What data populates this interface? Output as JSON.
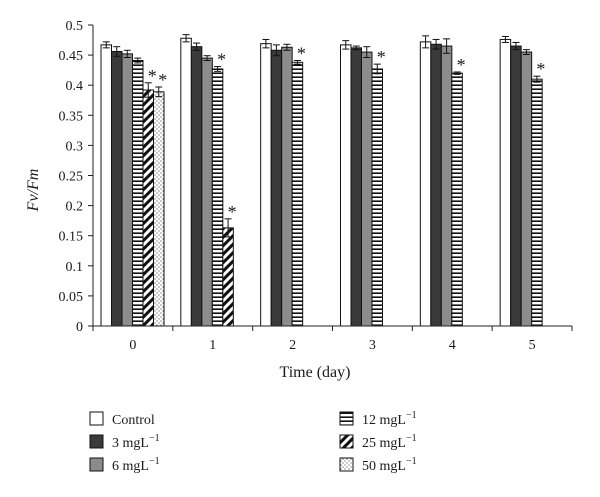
{
  "chart_data": {
    "type": "bar",
    "ylabel": "Fv/Fm",
    "xlabel": "Time (day)",
    "ylim": [
      0,
      0.5
    ],
    "yticks": [
      "0",
      "0.05",
      "0.1",
      "0.15",
      "0.2",
      "0.25",
      "0.3",
      "0.35",
      "0.4",
      "0.45",
      "0.5"
    ],
    "categories": [
      "0",
      "1",
      "2",
      "3",
      "4",
      "5"
    ],
    "series": [
      {
        "name": "Control",
        "pattern": "white",
        "values": [
          0.467,
          0.478,
          0.469,
          0.467,
          0.472,
          0.476
        ],
        "errors": [
          0.005,
          0.006,
          0.007,
          0.007,
          0.01,
          0.005
        ],
        "significant": [
          false,
          false,
          false,
          false,
          false,
          false
        ]
      },
      {
        "name": "3 mgL",
        "sup": "−1",
        "pattern": "dark",
        "values": [
          0.456,
          0.464,
          0.458,
          0.462,
          0.468,
          0.465
        ],
        "errors": [
          0.008,
          0.006,
          0.009,
          0.003,
          0.008,
          0.006
        ],
        "significant": [
          false,
          false,
          false,
          false,
          false,
          false
        ]
      },
      {
        "name": "6 mgL",
        "sup": "−1",
        "pattern": "gray",
        "values": [
          0.452,
          0.445,
          0.463,
          0.455,
          0.465,
          0.455
        ],
        "errors": [
          0.006,
          0.004,
          0.005,
          0.009,
          0.012,
          0.004
        ],
        "significant": [
          false,
          false,
          false,
          false,
          false,
          false
        ]
      },
      {
        "name": "12 mgL",
        "sup": "−1",
        "pattern": "hlines",
        "values": [
          0.441,
          0.427,
          0.438,
          0.427,
          0.42,
          0.41
        ],
        "errors": [
          0.004,
          0.004,
          0.003,
          0.008,
          0.002,
          0.005
        ],
        "significant": [
          false,
          true,
          true,
          true,
          true,
          true
        ]
      },
      {
        "name": "25 mgL",
        "sup": "−1",
        "pattern": "diag",
        "values": [
          0.392,
          0.163,
          null,
          null,
          null,
          null
        ],
        "errors": [
          0.012,
          0.015,
          null,
          null,
          null,
          null
        ],
        "significant": [
          true,
          true,
          false,
          false,
          false,
          false
        ]
      },
      {
        "name": "50 mgL",
        "sup": "−1",
        "pattern": "dots",
        "values": [
          0.389,
          null,
          null,
          null,
          null,
          null
        ],
        "errors": [
          0.008,
          null,
          null,
          null,
          null,
          null
        ],
        "significant": [
          true,
          false,
          false,
          false,
          false,
          false
        ]
      }
    ],
    "significance_marker": "*",
    "legend_position": "bottom",
    "grid": false
  }
}
